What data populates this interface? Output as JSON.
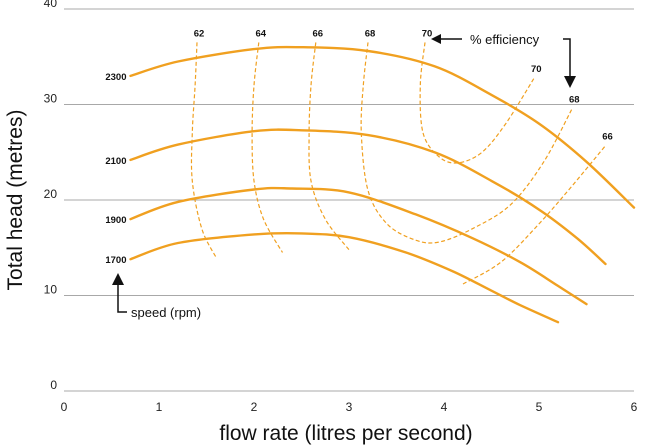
{
  "chart_data": {
    "type": "line",
    "title": "",
    "xlabel": "flow rate (litres per second)",
    "ylabel": "Total head (metres)",
    "xlim": [
      0,
      6
    ],
    "ylim": [
      0,
      40
    ],
    "x_ticks": [
      "0",
      "1",
      "2",
      "3",
      "4",
      "5",
      "6"
    ],
    "y_ticks": [
      "0",
      "10",
      "20",
      "30",
      "40"
    ],
    "grid": "horizontal",
    "line_color": "#f0a020",
    "speed_curves": [
      {
        "name": "2300",
        "points": [
          [
            0.7,
            33.0
          ],
          [
            1.2,
            34.5
          ],
          [
            2.0,
            35.8
          ],
          [
            2.5,
            36.0
          ],
          [
            3.2,
            35.6
          ],
          [
            3.9,
            34.0
          ],
          [
            4.5,
            31.0
          ],
          [
            5.0,
            28.0
          ],
          [
            5.5,
            24.0
          ],
          [
            6.0,
            19.2
          ]
        ]
      },
      {
        "name": "2100",
        "points": [
          [
            0.7,
            24.2
          ],
          [
            1.2,
            25.8
          ],
          [
            2.0,
            27.2
          ],
          [
            2.5,
            27.3
          ],
          [
            3.2,
            26.8
          ],
          [
            3.9,
            25.0
          ],
          [
            4.5,
            22.0
          ],
          [
            5.0,
            19.0
          ],
          [
            5.4,
            16.0
          ],
          [
            5.7,
            13.3
          ]
        ]
      },
      {
        "name": "1900",
        "points": [
          [
            0.7,
            18.0
          ],
          [
            1.2,
            19.8
          ],
          [
            2.0,
            21.1
          ],
          [
            2.4,
            21.2
          ],
          [
            3.0,
            20.8
          ],
          [
            3.7,
            18.5
          ],
          [
            4.3,
            16.0
          ],
          [
            4.8,
            13.5
          ],
          [
            5.2,
            11.0
          ],
          [
            5.5,
            9.1
          ]
        ]
      },
      {
        "name": "1700",
        "points": [
          [
            0.7,
            13.8
          ],
          [
            1.2,
            15.5
          ],
          [
            2.0,
            16.4
          ],
          [
            2.5,
            16.5
          ],
          [
            3.0,
            16.1
          ],
          [
            3.6,
            14.5
          ],
          [
            4.1,
            12.5
          ],
          [
            4.5,
            10.5
          ],
          [
            4.8,
            9.0
          ],
          [
            5.2,
            7.2
          ]
        ]
      }
    ],
    "efficiency_curves": [
      {
        "name": "62",
        "points": [
          [
            1.4,
            36.5
          ],
          [
            1.38,
            32.0
          ],
          [
            1.35,
            27.0
          ],
          [
            1.35,
            22.0
          ],
          [
            1.45,
            17.0
          ],
          [
            1.6,
            14.0
          ]
        ]
      },
      {
        "name": "64",
        "points": [
          [
            2.05,
            36.5
          ],
          [
            2.0,
            32.0
          ],
          [
            1.98,
            27.0
          ],
          [
            2.0,
            22.0
          ],
          [
            2.1,
            18.0
          ],
          [
            2.3,
            14.5
          ]
        ]
      },
      {
        "name": "66",
        "points": [
          [
            2.65,
            36.5
          ],
          [
            2.6,
            32.0
          ],
          [
            2.58,
            27.0
          ],
          [
            2.6,
            22.0
          ],
          [
            2.75,
            18.0
          ],
          [
            3.0,
            14.8
          ]
        ]
      },
      {
        "name": "68",
        "points": [
          [
            3.2,
            36.5
          ],
          [
            3.15,
            32.0
          ],
          [
            3.13,
            27.0
          ],
          [
            3.2,
            21.0
          ],
          [
            3.4,
            17.5
          ],
          [
            3.7,
            15.8
          ],
          [
            3.95,
            15.6
          ],
          [
            4.3,
            17.0
          ],
          [
            4.7,
            19.5
          ],
          [
            5.05,
            24.0
          ],
          [
            5.35,
            29.6
          ]
        ]
      },
      {
        "name": "70",
        "points": [
          [
            3.8,
            36.5
          ],
          [
            3.75,
            32.0
          ],
          [
            3.78,
            27.0
          ],
          [
            3.95,
            24.5
          ],
          [
            4.15,
            23.9
          ],
          [
            4.4,
            25.0
          ],
          [
            4.65,
            28.0
          ],
          [
            4.95,
            32.8
          ]
        ]
      },
      {
        "name": "66",
        "points": [
          [
            4.2,
            11.2
          ],
          [
            4.6,
            13.5
          ],
          [
            5.0,
            17.5
          ],
          [
            5.35,
            21.5
          ],
          [
            5.7,
            25.7
          ]
        ]
      }
    ],
    "speed_labels": [
      "2300",
      "2100",
      "1900",
      "1700"
    ],
    "efficiency_labels": [
      "62",
      "64",
      "66",
      "68",
      "70",
      "70",
      "68",
      "66"
    ],
    "annotations": {
      "efficiency": "% efficiency",
      "speed": "speed (rpm)"
    }
  }
}
